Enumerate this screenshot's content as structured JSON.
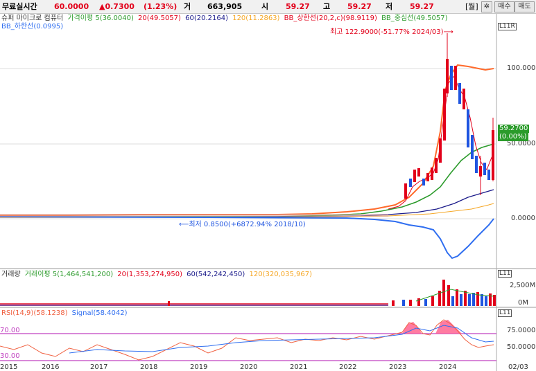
{
  "quote_bar": {
    "stock_name": "무료실시간",
    "price": "60.0000",
    "change": "▲0.7300",
    "change_pct": "(1.23%)",
    "volume_label": "거",
    "volume": "663,905",
    "open_label": "시",
    "open": "59.27",
    "high_label": "고",
    "high": "59.27",
    "low_label": "저",
    "low": "59.27",
    "period_button": "[월]",
    "settings_icon": "gear-icon",
    "buy_button": "매수",
    "sell_button": "매도"
  },
  "price_panel": {
    "legend": {
      "name": "슈퍼 마이크로 컴퓨터",
      "ma5": "가격이평 5(36.0040)",
      "ma20": "20(49.5057)",
      "ma60": "60(20.2164)",
      "ma120": "120(11.2863)",
      "bb_upper": "BB_상한선(20,2,c)(98.9119)",
      "bb_mid": "BB_중심선(49.5057)",
      "bb_lower": "BB_하한선(0.0995)"
    },
    "corner_box": "L11R",
    "y_ticks": [
      "100.0000",
      "50.0000",
      "0.0000"
    ],
    "high_annotation": "최고 122.9000(-51.77% 2024/03)⟶",
    "low_annotation": "⟵최저 0.8500(+6872.94% 2018/10)",
    "last_price_tag": "59.2700",
    "last_price_pct": "(0.00%)"
  },
  "volume_panel": {
    "legend": {
      "title": "거래량",
      "ma5": "거래이평 5(1,464,541,200)",
      "ma20": "20(1,353,274,950)",
      "ma60": "60(542,242,450)",
      "ma120": "120(320,035,967)"
    },
    "y_ticks": [
      "2,500M",
      "0M"
    ],
    "corner_box": "L11"
  },
  "rsi_panel": {
    "legend": {
      "rsi": "RSI(14,9)(58.1238)",
      "signal": "Signal(58.4042)"
    },
    "y_ticks": [
      "75.0000",
      "50.0000"
    ],
    "left_upper": "70.00",
    "left_lower": "30.00",
    "corner_box": "L11"
  },
  "x_axis": {
    "years": [
      "2015",
      "2016",
      "2017",
      "2018",
      "2019",
      "2020",
      "2021",
      "2022",
      "2023",
      "2024"
    ],
    "right_date": "02/03"
  },
  "colors": {
    "up": "#e2001a",
    "down": "#1f55e0",
    "ma5": "#e2001a",
    "ma20": "#2c9b2c",
    "ma60": "#1a1a8a",
    "ma120": "#f5a623",
    "bb_upper": "#ff6a2b",
    "bb_mid": "#2c9b2c",
    "bb_lower": "#2f6ef0",
    "rsi": "#f06040",
    "signal": "#2f6ef0",
    "rsi_fill": "#ff5a8a"
  }
}
